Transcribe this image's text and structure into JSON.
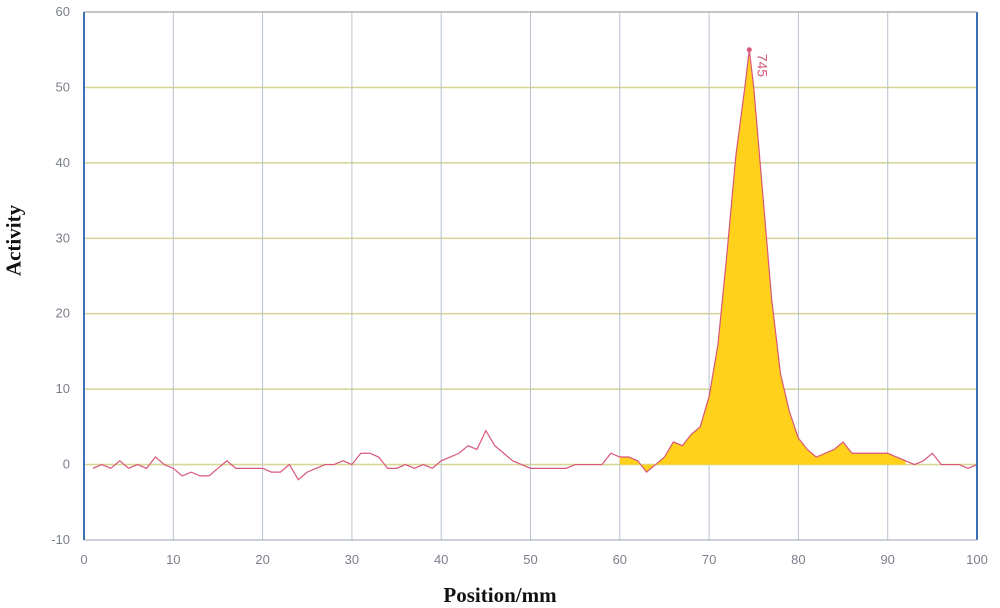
{
  "chart_data": {
    "type": "area",
    "title": "",
    "xlabel": "Position/mm",
    "ylabel": "Activity",
    "xlim": [
      0,
      100
    ],
    "ylim": [
      -10,
      60
    ],
    "x_ticks": [
      0,
      10,
      20,
      30,
      40,
      50,
      60,
      70,
      80,
      90,
      100
    ],
    "y_ticks": [
      -10,
      0,
      10,
      20,
      30,
      40,
      50,
      60
    ],
    "grid": true,
    "peak_annotation": {
      "x": 74.5,
      "y": 55,
      "label": "745"
    },
    "highlighted_region": [
      59.5,
      92
    ],
    "colors": {
      "line": "#d9577a",
      "fill": "#ffd11a",
      "grid_h": "#d8d79a",
      "grid_v": "#b7c3cf",
      "axis": "#3b6fb6"
    },
    "series": [
      {
        "x": [
          1,
          2,
          3,
          4,
          5,
          6,
          7,
          8,
          9,
          10,
          11,
          12,
          13,
          14,
          15,
          16,
          17,
          18,
          19,
          20,
          21,
          22,
          23,
          24,
          25,
          26,
          27,
          28,
          29,
          30,
          31,
          32,
          33,
          34,
          35,
          36,
          37,
          38,
          39,
          40,
          41,
          42,
          43,
          44,
          45,
          46,
          47,
          48,
          49,
          50,
          51,
          52,
          53,
          54,
          55,
          56,
          57,
          58,
          59,
          60,
          61,
          62,
          63,
          64,
          65,
          66,
          67,
          68,
          69,
          70,
          71,
          72,
          73,
          74,
          74.5,
          75,
          76,
          77,
          78,
          79,
          80,
          81,
          82,
          83,
          84,
          85,
          86,
          87,
          88,
          89,
          90,
          91,
          92,
          93,
          94,
          95,
          96,
          97,
          98,
          99,
          100
        ],
        "y": [
          -0.5,
          0,
          -0.5,
          0.5,
          -0.5,
          0,
          -0.5,
          1,
          0,
          -0.5,
          -1.5,
          -1,
          -1.5,
          -1.5,
          -0.5,
          0.5,
          -0.5,
          -0.5,
          -0.5,
          -0.5,
          -1,
          -1,
          0,
          -2,
          -1,
          -0.5,
          0,
          0,
          0.5,
          0,
          1.5,
          1.5,
          1,
          -0.5,
          -0.5,
          0,
          -0.5,
          0,
          -0.5,
          0.5,
          1,
          1.5,
          2.5,
          2,
          4.5,
          2.5,
          1.5,
          0.5,
          0,
          -0.5,
          -0.5,
          -0.5,
          -0.5,
          -0.5,
          0,
          0,
          0,
          0,
          1.5,
          1,
          1,
          0.5,
          -1,
          0,
          1,
          3,
          2.5,
          4,
          5,
          9,
          16,
          28,
          41,
          50,
          55,
          50,
          36,
          22,
          12,
          7,
          3.5,
          2,
          1,
          1.5,
          2,
          3,
          1.5,
          1.5,
          1.5,
          1.5,
          1.5,
          1,
          0.5,
          0,
          0.5,
          1.5,
          0,
          0,
          0,
          -0.5,
          0
        ]
      }
    ]
  }
}
